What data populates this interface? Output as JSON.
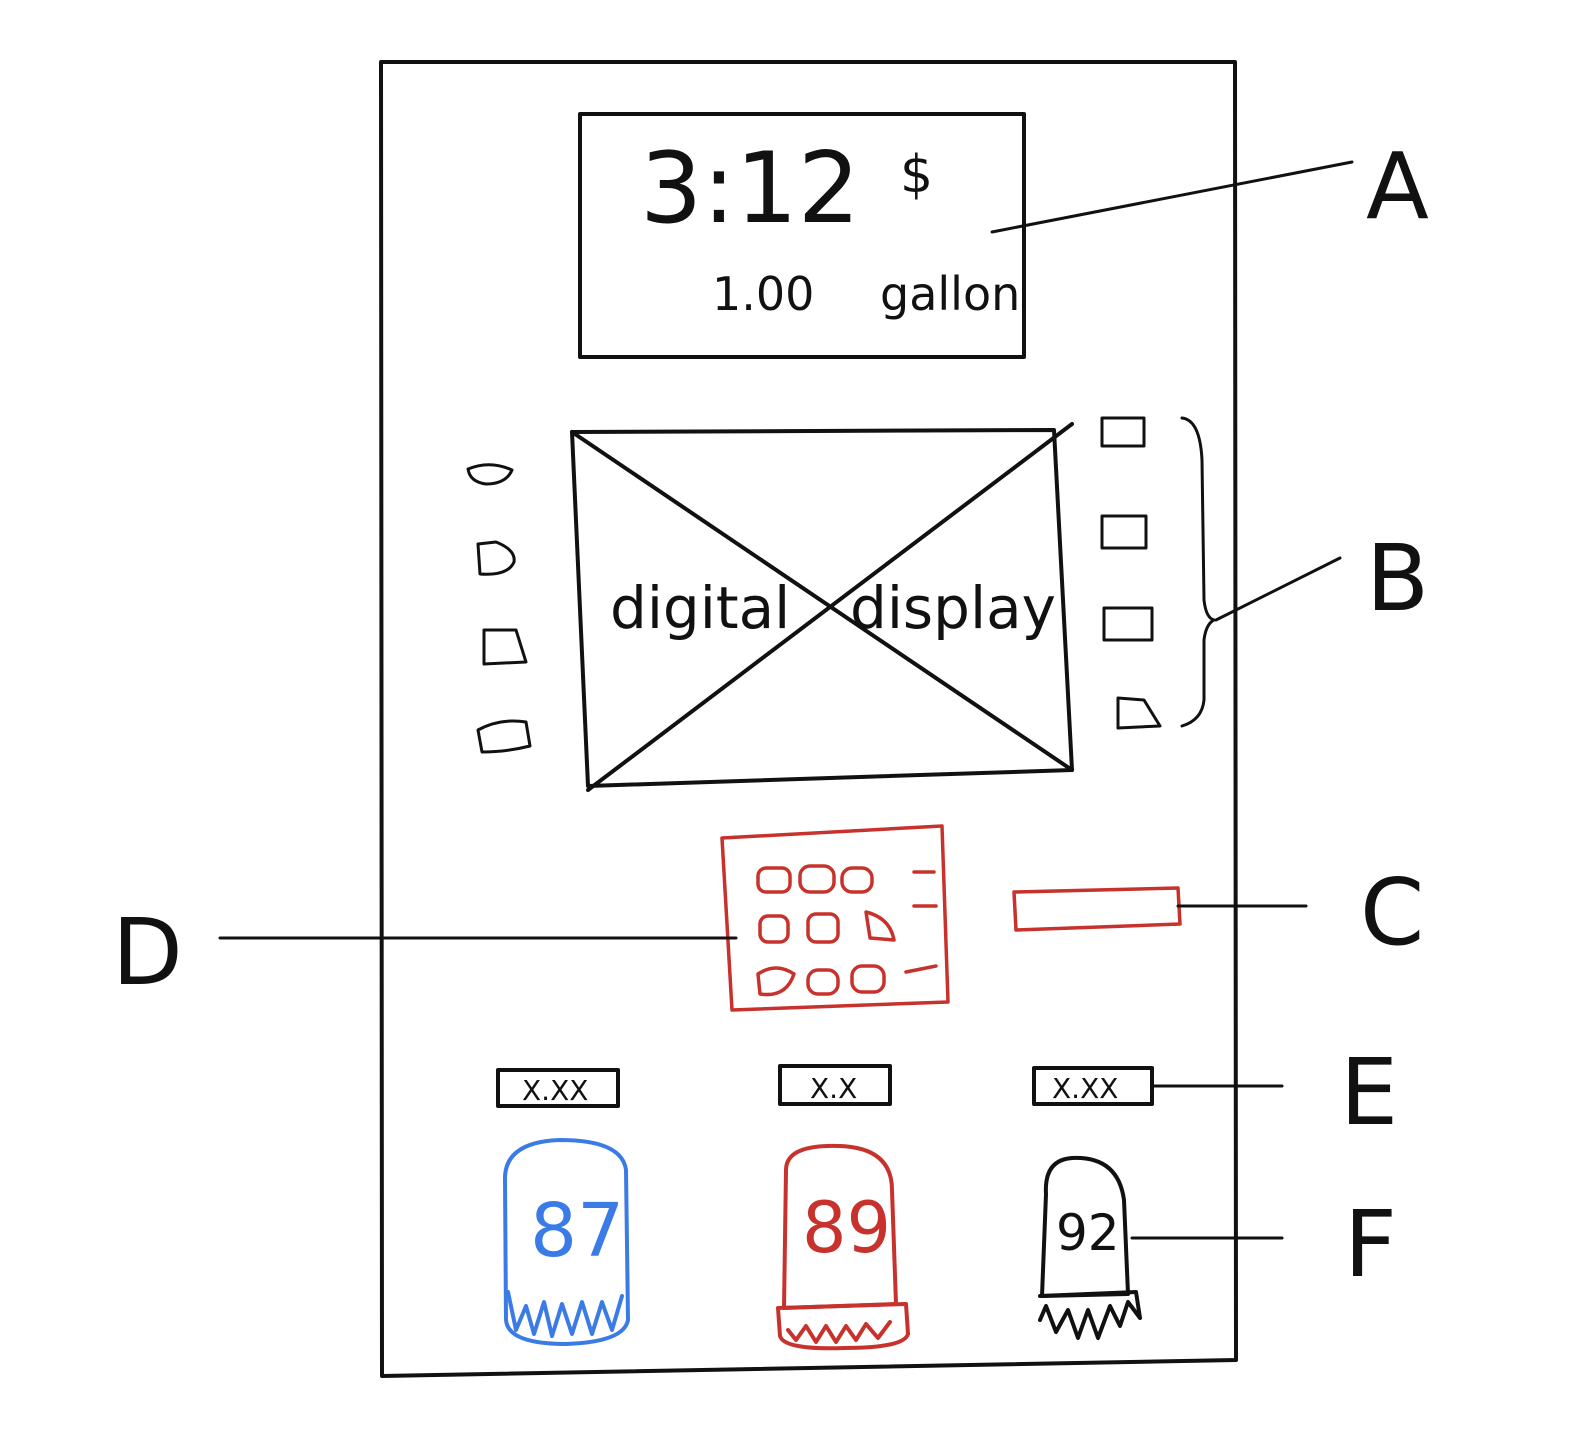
{
  "colors": {
    "ink": "#111111",
    "red": "#c8322c",
    "blue": "#3b7be6",
    "paper": "#ffffff"
  },
  "readout": {
    "price": "3:12",
    "currency": "$",
    "volume": "1.00",
    "unit": "gallon"
  },
  "display": {
    "label_left": "digital",
    "label_right": "display"
  },
  "price_tags": [
    "X.XX",
    "X.X",
    "X.XX"
  ],
  "grades": [
    {
      "octane": "87",
      "color": "#3b7be6"
    },
    {
      "octane": "89",
      "color": "#c8322c"
    },
    {
      "octane": "92",
      "color": "#111111"
    }
  ],
  "callouts": {
    "a": "A",
    "b": "B",
    "c": "C",
    "d": "D",
    "e": "E",
    "f": "F"
  }
}
